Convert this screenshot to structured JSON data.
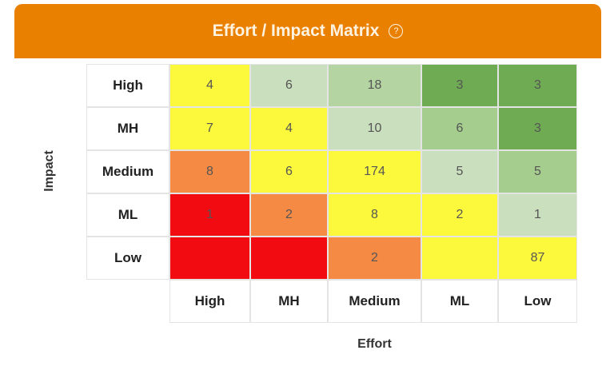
{
  "header": {
    "title": "Effort / Impact Matrix",
    "help_icon": "?"
  },
  "chart_data": {
    "type": "heatmap",
    "title": "Effort / Impact Matrix",
    "xlabel": "Effort",
    "ylabel": "Impact",
    "x_categories": [
      "High",
      "MH",
      "Medium",
      "ML",
      "Low"
    ],
    "y_categories": [
      "High",
      "MH",
      "Medium",
      "ML",
      "Low"
    ],
    "values": [
      [
        "4",
        "6",
        "18",
        "3",
        "3"
      ],
      [
        "7",
        "4",
        "10",
        "6",
        "3"
      ],
      [
        "8",
        "6",
        "174",
        "5",
        "5"
      ],
      [
        "1",
        "2",
        "8",
        "2",
        "1"
      ],
      [
        "",
        "",
        "2",
        "",
        "87"
      ]
    ],
    "colors": [
      [
        "#fcf93c",
        "#c9dfbd",
        "#b4d5a2",
        "#6eab52",
        "#6eab52"
      ],
      [
        "#fcf93c",
        "#fcf93c",
        "#c9dfbd",
        "#a5cd8d",
        "#6eab52"
      ],
      [
        "#f58a45",
        "#fcf93c",
        "#fcf93c",
        "#c9dfbd",
        "#a5cd8d"
      ],
      [
        "#f20c12",
        "#f58a45",
        "#fcf93c",
        "#fcf93c",
        "#c9dfbd"
      ],
      [
        "#f20c12",
        "#f20c12",
        "#f58a45",
        "#fcf93c",
        "#fcf93c"
      ]
    ]
  }
}
